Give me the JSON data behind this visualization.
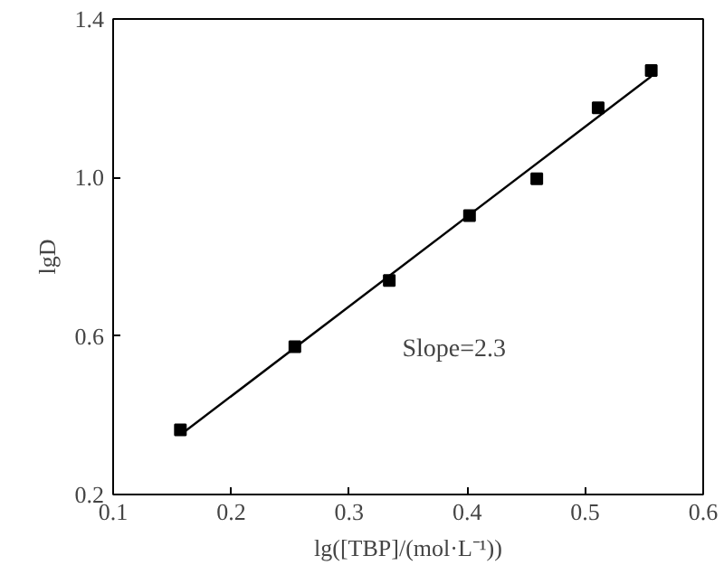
{
  "chart_data": {
    "type": "scatter",
    "xlabel": "lg([TBP]/(mol·L⁻¹))",
    "ylabel": "lgD",
    "x": [
      0.157,
      0.254,
      0.334,
      0.402,
      0.459,
      0.511,
      0.556
    ],
    "series": [
      {
        "color": "#000000",
        "marker": "square",
        "values": [
          0.363,
          0.573,
          0.74,
          0.904,
          0.997,
          1.176,
          1.27
        ]
      },
      {
        "type": "line",
        "color": "#000000",
        "x": [
          0.159,
          0.556
        ],
        "values": [
          0.355,
          1.255
        ]
      }
    ],
    "annotations": [
      "Slope=2.3"
    ],
    "xlim": [
      0.1,
      0.6
    ],
    "ylim": [
      0.2,
      1.4
    ],
    "xticks": [
      0.1,
      0.2,
      0.3,
      0.4,
      0.5,
      0.6
    ],
    "yticks": [
      0.2,
      0.6,
      {
        "value": 1.0,
        "label": "1.0"
      },
      1.4
    ],
    "grid": false
  }
}
